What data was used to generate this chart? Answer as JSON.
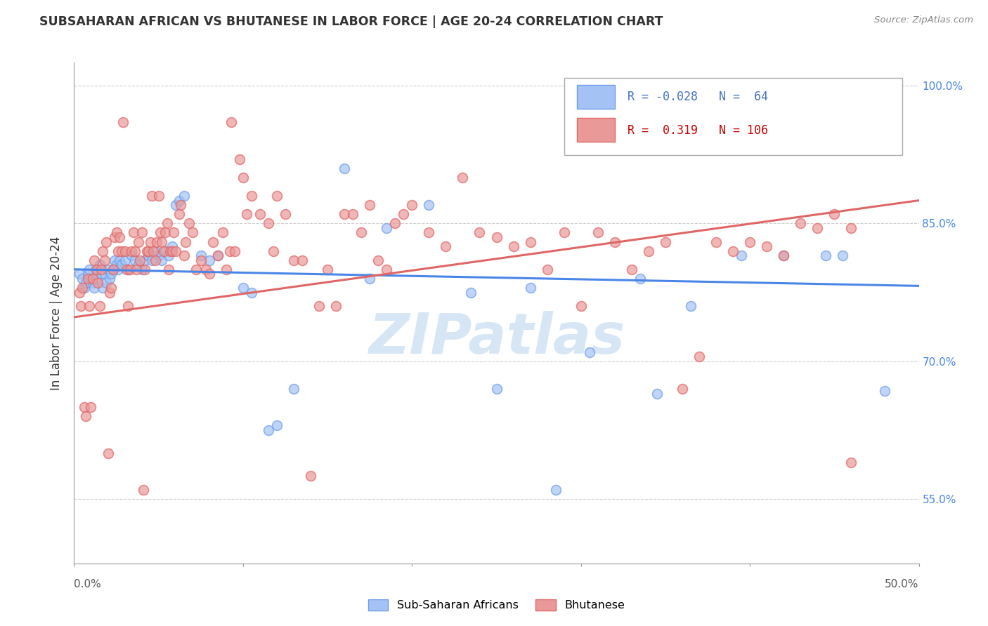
{
  "title": "SUBSAHARAN AFRICAN VS BHUTANESE IN LABOR FORCE | AGE 20-24 CORRELATION CHART",
  "source": "Source: ZipAtlas.com",
  "ylabel": "In Labor Force | Age 20-24",
  "legend_blue_label": "Sub-Saharan Africans",
  "legend_pink_label": "Bhutanese",
  "blue_color": "#a4c2f4",
  "pink_color": "#ea9999",
  "blue_edge": "#6d9eeb",
  "pink_edge": "#e06666",
  "trend_blue": "#4a86e8",
  "trend_pink": "#e06666",
  "right_tick_color": "#4a86e8",
  "watermark_color": "#cfe2f3",
  "blue_points": [
    [
      0.003,
      0.795
    ],
    [
      0.005,
      0.79
    ],
    [
      0.006,
      0.78
    ],
    [
      0.007,
      0.785
    ],
    [
      0.008,
      0.795
    ],
    [
      0.009,
      0.8
    ],
    [
      0.01,
      0.79
    ],
    [
      0.011,
      0.785
    ],
    [
      0.012,
      0.78
    ],
    [
      0.013,
      0.79
    ],
    [
      0.014,
      0.8
    ],
    [
      0.015,
      0.805
    ],
    [
      0.016,
      0.795
    ],
    [
      0.017,
      0.78
    ],
    [
      0.018,
      0.795
    ],
    [
      0.019,
      0.785
    ],
    [
      0.02,
      0.8
    ],
    [
      0.021,
      0.79
    ],
    [
      0.022,
      0.795
    ],
    [
      0.023,
      0.8
    ],
    [
      0.024,
      0.81
    ],
    [
      0.025,
      0.805
    ],
    [
      0.026,
      0.8
    ],
    [
      0.027,
      0.81
    ],
    [
      0.028,
      0.805
    ],
    [
      0.03,
      0.81
    ],
    [
      0.032,
      0.8
    ],
    [
      0.034,
      0.815
    ],
    [
      0.036,
      0.81
    ],
    [
      0.038,
      0.805
    ],
    [
      0.04,
      0.8
    ],
    [
      0.042,
      0.81
    ],
    [
      0.044,
      0.815
    ],
    [
      0.046,
      0.81
    ],
    [
      0.048,
      0.82
    ],
    [
      0.05,
      0.815
    ],
    [
      0.052,
      0.81
    ],
    [
      0.054,
      0.82
    ],
    [
      0.056,
      0.815
    ],
    [
      0.058,
      0.825
    ],
    [
      0.06,
      0.87
    ],
    [
      0.062,
      0.875
    ],
    [
      0.065,
      0.88
    ],
    [
      0.075,
      0.815
    ],
    [
      0.08,
      0.81
    ],
    [
      0.085,
      0.815
    ],
    [
      0.1,
      0.78
    ],
    [
      0.105,
      0.775
    ],
    [
      0.115,
      0.625
    ],
    [
      0.12,
      0.63
    ],
    [
      0.13,
      0.67
    ],
    [
      0.16,
      0.91
    ],
    [
      0.175,
      0.79
    ],
    [
      0.185,
      0.845
    ],
    [
      0.21,
      0.87
    ],
    [
      0.235,
      0.775
    ],
    [
      0.25,
      0.67
    ],
    [
      0.27,
      0.78
    ],
    [
      0.285,
      0.56
    ],
    [
      0.305,
      0.71
    ],
    [
      0.335,
      0.79
    ],
    [
      0.345,
      0.665
    ],
    [
      0.365,
      0.76
    ],
    [
      0.395,
      0.815
    ],
    [
      0.42,
      0.815
    ],
    [
      0.445,
      0.815
    ],
    [
      0.455,
      0.815
    ],
    [
      0.48,
      0.668
    ]
  ],
  "pink_points": [
    [
      0.003,
      0.775
    ],
    [
      0.004,
      0.76
    ],
    [
      0.005,
      0.78
    ],
    [
      0.006,
      0.65
    ],
    [
      0.007,
      0.64
    ],
    [
      0.008,
      0.79
    ],
    [
      0.009,
      0.76
    ],
    [
      0.01,
      0.65
    ],
    [
      0.011,
      0.79
    ],
    [
      0.012,
      0.81
    ],
    [
      0.013,
      0.8
    ],
    [
      0.014,
      0.785
    ],
    [
      0.015,
      0.76
    ],
    [
      0.016,
      0.8
    ],
    [
      0.017,
      0.82
    ],
    [
      0.018,
      0.81
    ],
    [
      0.019,
      0.83
    ],
    [
      0.02,
      0.6
    ],
    [
      0.021,
      0.775
    ],
    [
      0.022,
      0.78
    ],
    [
      0.023,
      0.8
    ],
    [
      0.024,
      0.835
    ],
    [
      0.025,
      0.84
    ],
    [
      0.026,
      0.82
    ],
    [
      0.027,
      0.835
    ],
    [
      0.028,
      0.82
    ],
    [
      0.029,
      0.96
    ],
    [
      0.03,
      0.82
    ],
    [
      0.031,
      0.8
    ],
    [
      0.032,
      0.76
    ],
    [
      0.033,
      0.8
    ],
    [
      0.034,
      0.82
    ],
    [
      0.035,
      0.84
    ],
    [
      0.036,
      0.82
    ],
    [
      0.037,
      0.8
    ],
    [
      0.038,
      0.83
    ],
    [
      0.039,
      0.81
    ],
    [
      0.04,
      0.84
    ],
    [
      0.041,
      0.56
    ],
    [
      0.042,
      0.8
    ],
    [
      0.043,
      0.82
    ],
    [
      0.044,
      0.82
    ],
    [
      0.045,
      0.83
    ],
    [
      0.046,
      0.88
    ],
    [
      0.047,
      0.82
    ],
    [
      0.048,
      0.81
    ],
    [
      0.049,
      0.83
    ],
    [
      0.05,
      0.88
    ],
    [
      0.051,
      0.84
    ],
    [
      0.052,
      0.83
    ],
    [
      0.053,
      0.82
    ],
    [
      0.054,
      0.84
    ],
    [
      0.055,
      0.85
    ],
    [
      0.056,
      0.8
    ],
    [
      0.057,
      0.82
    ],
    [
      0.058,
      0.82
    ],
    [
      0.059,
      0.84
    ],
    [
      0.06,
      0.82
    ],
    [
      0.062,
      0.86
    ],
    [
      0.063,
      0.87
    ],
    [
      0.065,
      0.815
    ],
    [
      0.066,
      0.83
    ],
    [
      0.068,
      0.85
    ],
    [
      0.07,
      0.84
    ],
    [
      0.072,
      0.8
    ],
    [
      0.075,
      0.81
    ],
    [
      0.078,
      0.8
    ],
    [
      0.08,
      0.795
    ],
    [
      0.082,
      0.83
    ],
    [
      0.085,
      0.815
    ],
    [
      0.088,
      0.84
    ],
    [
      0.09,
      0.8
    ],
    [
      0.092,
      0.82
    ],
    [
      0.093,
      0.96
    ],
    [
      0.095,
      0.82
    ],
    [
      0.098,
      0.92
    ],
    [
      0.1,
      0.9
    ],
    [
      0.102,
      0.86
    ],
    [
      0.105,
      0.88
    ],
    [
      0.11,
      0.86
    ],
    [
      0.115,
      0.85
    ],
    [
      0.118,
      0.82
    ],
    [
      0.12,
      0.88
    ],
    [
      0.125,
      0.86
    ],
    [
      0.13,
      0.81
    ],
    [
      0.135,
      0.81
    ],
    [
      0.14,
      0.575
    ],
    [
      0.145,
      0.76
    ],
    [
      0.15,
      0.8
    ],
    [
      0.155,
      0.76
    ],
    [
      0.16,
      0.86
    ],
    [
      0.165,
      0.86
    ],
    [
      0.17,
      0.84
    ],
    [
      0.175,
      0.87
    ],
    [
      0.18,
      0.81
    ],
    [
      0.185,
      0.8
    ],
    [
      0.19,
      0.85
    ],
    [
      0.195,
      0.86
    ],
    [
      0.2,
      0.87
    ],
    [
      0.21,
      0.84
    ],
    [
      0.22,
      0.825
    ],
    [
      0.23,
      0.9
    ],
    [
      0.24,
      0.84
    ],
    [
      0.25,
      0.835
    ],
    [
      0.26,
      0.825
    ],
    [
      0.27,
      0.83
    ],
    [
      0.28,
      0.8
    ],
    [
      0.29,
      0.84
    ],
    [
      0.3,
      0.76
    ],
    [
      0.31,
      0.84
    ],
    [
      0.32,
      0.83
    ],
    [
      0.33,
      0.8
    ],
    [
      0.34,
      0.82
    ],
    [
      0.35,
      0.83
    ],
    [
      0.36,
      0.67
    ],
    [
      0.37,
      0.705
    ],
    [
      0.38,
      0.83
    ],
    [
      0.39,
      0.82
    ],
    [
      0.4,
      0.83
    ],
    [
      0.41,
      0.825
    ],
    [
      0.42,
      0.815
    ],
    [
      0.43,
      0.85
    ],
    [
      0.44,
      0.845
    ],
    [
      0.45,
      0.86
    ],
    [
      0.46,
      0.845
    ],
    [
      0.46,
      0.59
    ]
  ],
  "xmin": 0.0,
  "xmax": 0.5,
  "ymin": 0.48,
  "ymax": 1.025,
  "ytick_vals": [
    0.55,
    0.7,
    0.85,
    1.0
  ],
  "ytick_labels": [
    "55.0%",
    "70.0%",
    "85.0%",
    "100.0%"
  ],
  "blue_trend_x": [
    0.0,
    0.5
  ],
  "blue_trend_y": [
    0.8,
    0.782
  ],
  "pink_trend_x": [
    0.0,
    0.5
  ],
  "pink_trend_y": [
    0.748,
    0.875
  ]
}
